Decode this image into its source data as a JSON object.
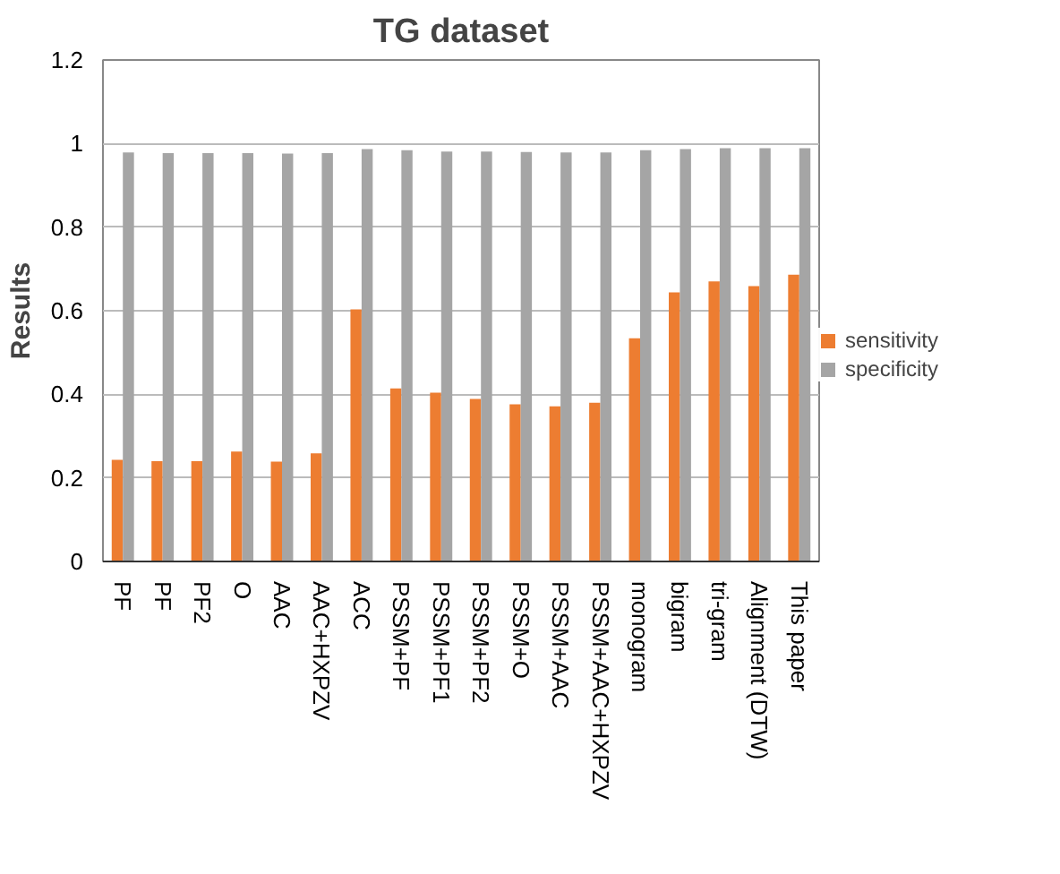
{
  "chart_data": {
    "type": "bar",
    "title": "TG dataset",
    "ylabel": "Results",
    "categories": [
      "PF",
      "PF",
      "PF2",
      "O",
      "AAC",
      "AAC+HXPZV",
      "ACC",
      "PSSM+PF",
      "PSSM+PF1",
      "PSSM+PF2",
      "PSSM+O",
      "PSSM+AAC",
      "PSSM+AAC+HXPZV",
      "monogram",
      "bigram",
      "tri-gram",
      "Alignment (DTW)",
      "This paper"
    ],
    "series": [
      {
        "name": "sensitivity",
        "color": "#ed7d31",
        "values": [
          0.243,
          0.24,
          0.24,
          0.263,
          0.239,
          0.259,
          0.603,
          0.414,
          0.404,
          0.389,
          0.376,
          0.371,
          0.38,
          0.534,
          0.644,
          0.67,
          0.659,
          0.686
        ]
      },
      {
        "name": "specificity",
        "color": "#a5a5a5",
        "values": [
          0.979,
          0.977,
          0.977,
          0.977,
          0.976,
          0.977,
          0.987,
          0.984,
          0.981,
          0.981,
          0.98,
          0.979,
          0.979,
          0.984,
          0.987,
          0.989,
          0.989,
          0.989
        ]
      }
    ],
    "ylim": [
      0,
      1.2
    ],
    "yticks": [
      0,
      0.2,
      0.4,
      0.6,
      0.8,
      {
        "value": 1,
        "label": "1"
      },
      1.2
    ],
    "grid": "y",
    "legend": "right"
  }
}
